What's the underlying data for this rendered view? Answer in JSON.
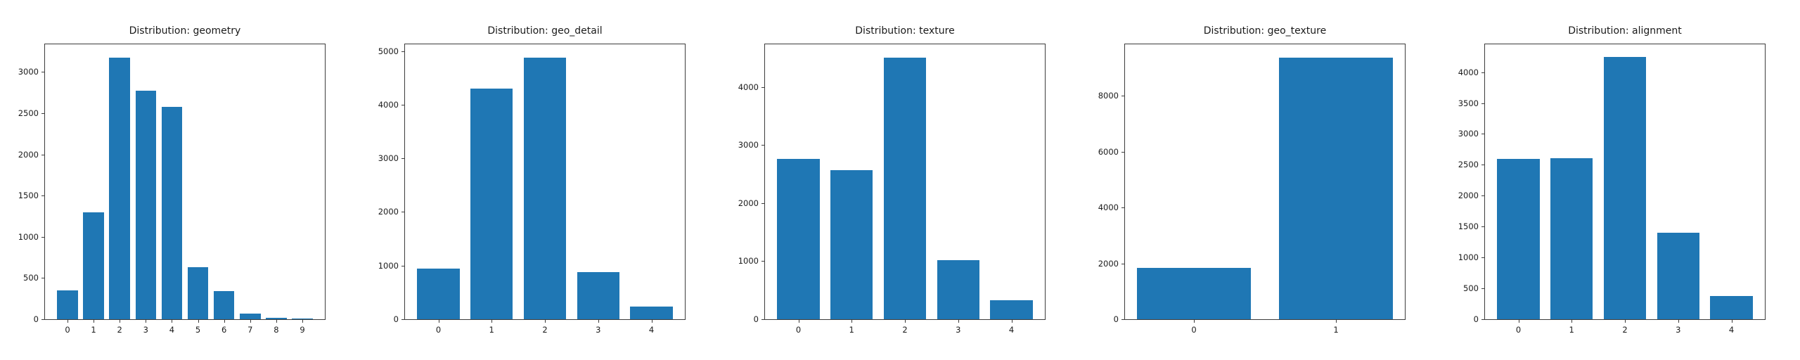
{
  "figure": {
    "background": "#ffffff"
  },
  "colors": {
    "bar": "#1f77b4",
    "axis": "#3c3c3c",
    "text": "#1a1a1a"
  },
  "chart_data": [
    {
      "type": "bar",
      "title": "Distribution: geometry",
      "categories": [
        "0",
        "1",
        "2",
        "3",
        "4",
        "5",
        "6",
        "7",
        "8",
        "9"
      ],
      "values": [
        350,
        1300,
        3175,
        2770,
        2580,
        630,
        345,
        65,
        20,
        5
      ],
      "xlabel": "",
      "ylabel": "",
      "yticks": [
        0,
        500,
        1000,
        1500,
        2000,
        2500,
        3000
      ],
      "ylim": [
        0,
        3335
      ],
      "grid": false,
      "legend": null
    },
    {
      "type": "bar",
      "title": "Distribution: geo_detail",
      "categories": [
        "0",
        "1",
        "2",
        "3",
        "4"
      ],
      "values": [
        950,
        4300,
        4880,
        880,
        240
      ],
      "xlabel": "",
      "ylabel": "",
      "yticks": [
        0,
        1000,
        2000,
        3000,
        4000,
        5000
      ],
      "ylim": [
        0,
        5125
      ],
      "grid": false,
      "legend": null
    },
    {
      "type": "bar",
      "title": "Distribution: texture",
      "categories": [
        "0",
        "1",
        "2",
        "3",
        "4"
      ],
      "values": [
        2760,
        2570,
        4510,
        1020,
        330
      ],
      "xlabel": "",
      "ylabel": "",
      "yticks": [
        0,
        1000,
        2000,
        3000,
        4000
      ],
      "ylim": [
        0,
        4735
      ],
      "grid": false,
      "legend": null
    },
    {
      "type": "bar",
      "title": "Distribution: geo_texture",
      "categories": [
        "0",
        "1"
      ],
      "values": [
        1850,
        9380
      ],
      "xlabel": "",
      "ylabel": "",
      "yticks": [
        0,
        2000,
        4000,
        6000,
        8000
      ],
      "ylim": [
        0,
        9850
      ],
      "grid": false,
      "legend": null
    },
    {
      "type": "bar",
      "title": "Distribution: alignment",
      "categories": [
        "0",
        "1",
        "2",
        "3",
        "4"
      ],
      "values": [
        2600,
        2610,
        4240,
        1400,
        380
      ],
      "xlabel": "",
      "ylabel": "",
      "yticks": [
        0,
        500,
        1000,
        1500,
        2000,
        2500,
        3000,
        3500,
        4000
      ],
      "ylim": [
        0,
        4450
      ],
      "grid": false,
      "legend": null
    }
  ]
}
